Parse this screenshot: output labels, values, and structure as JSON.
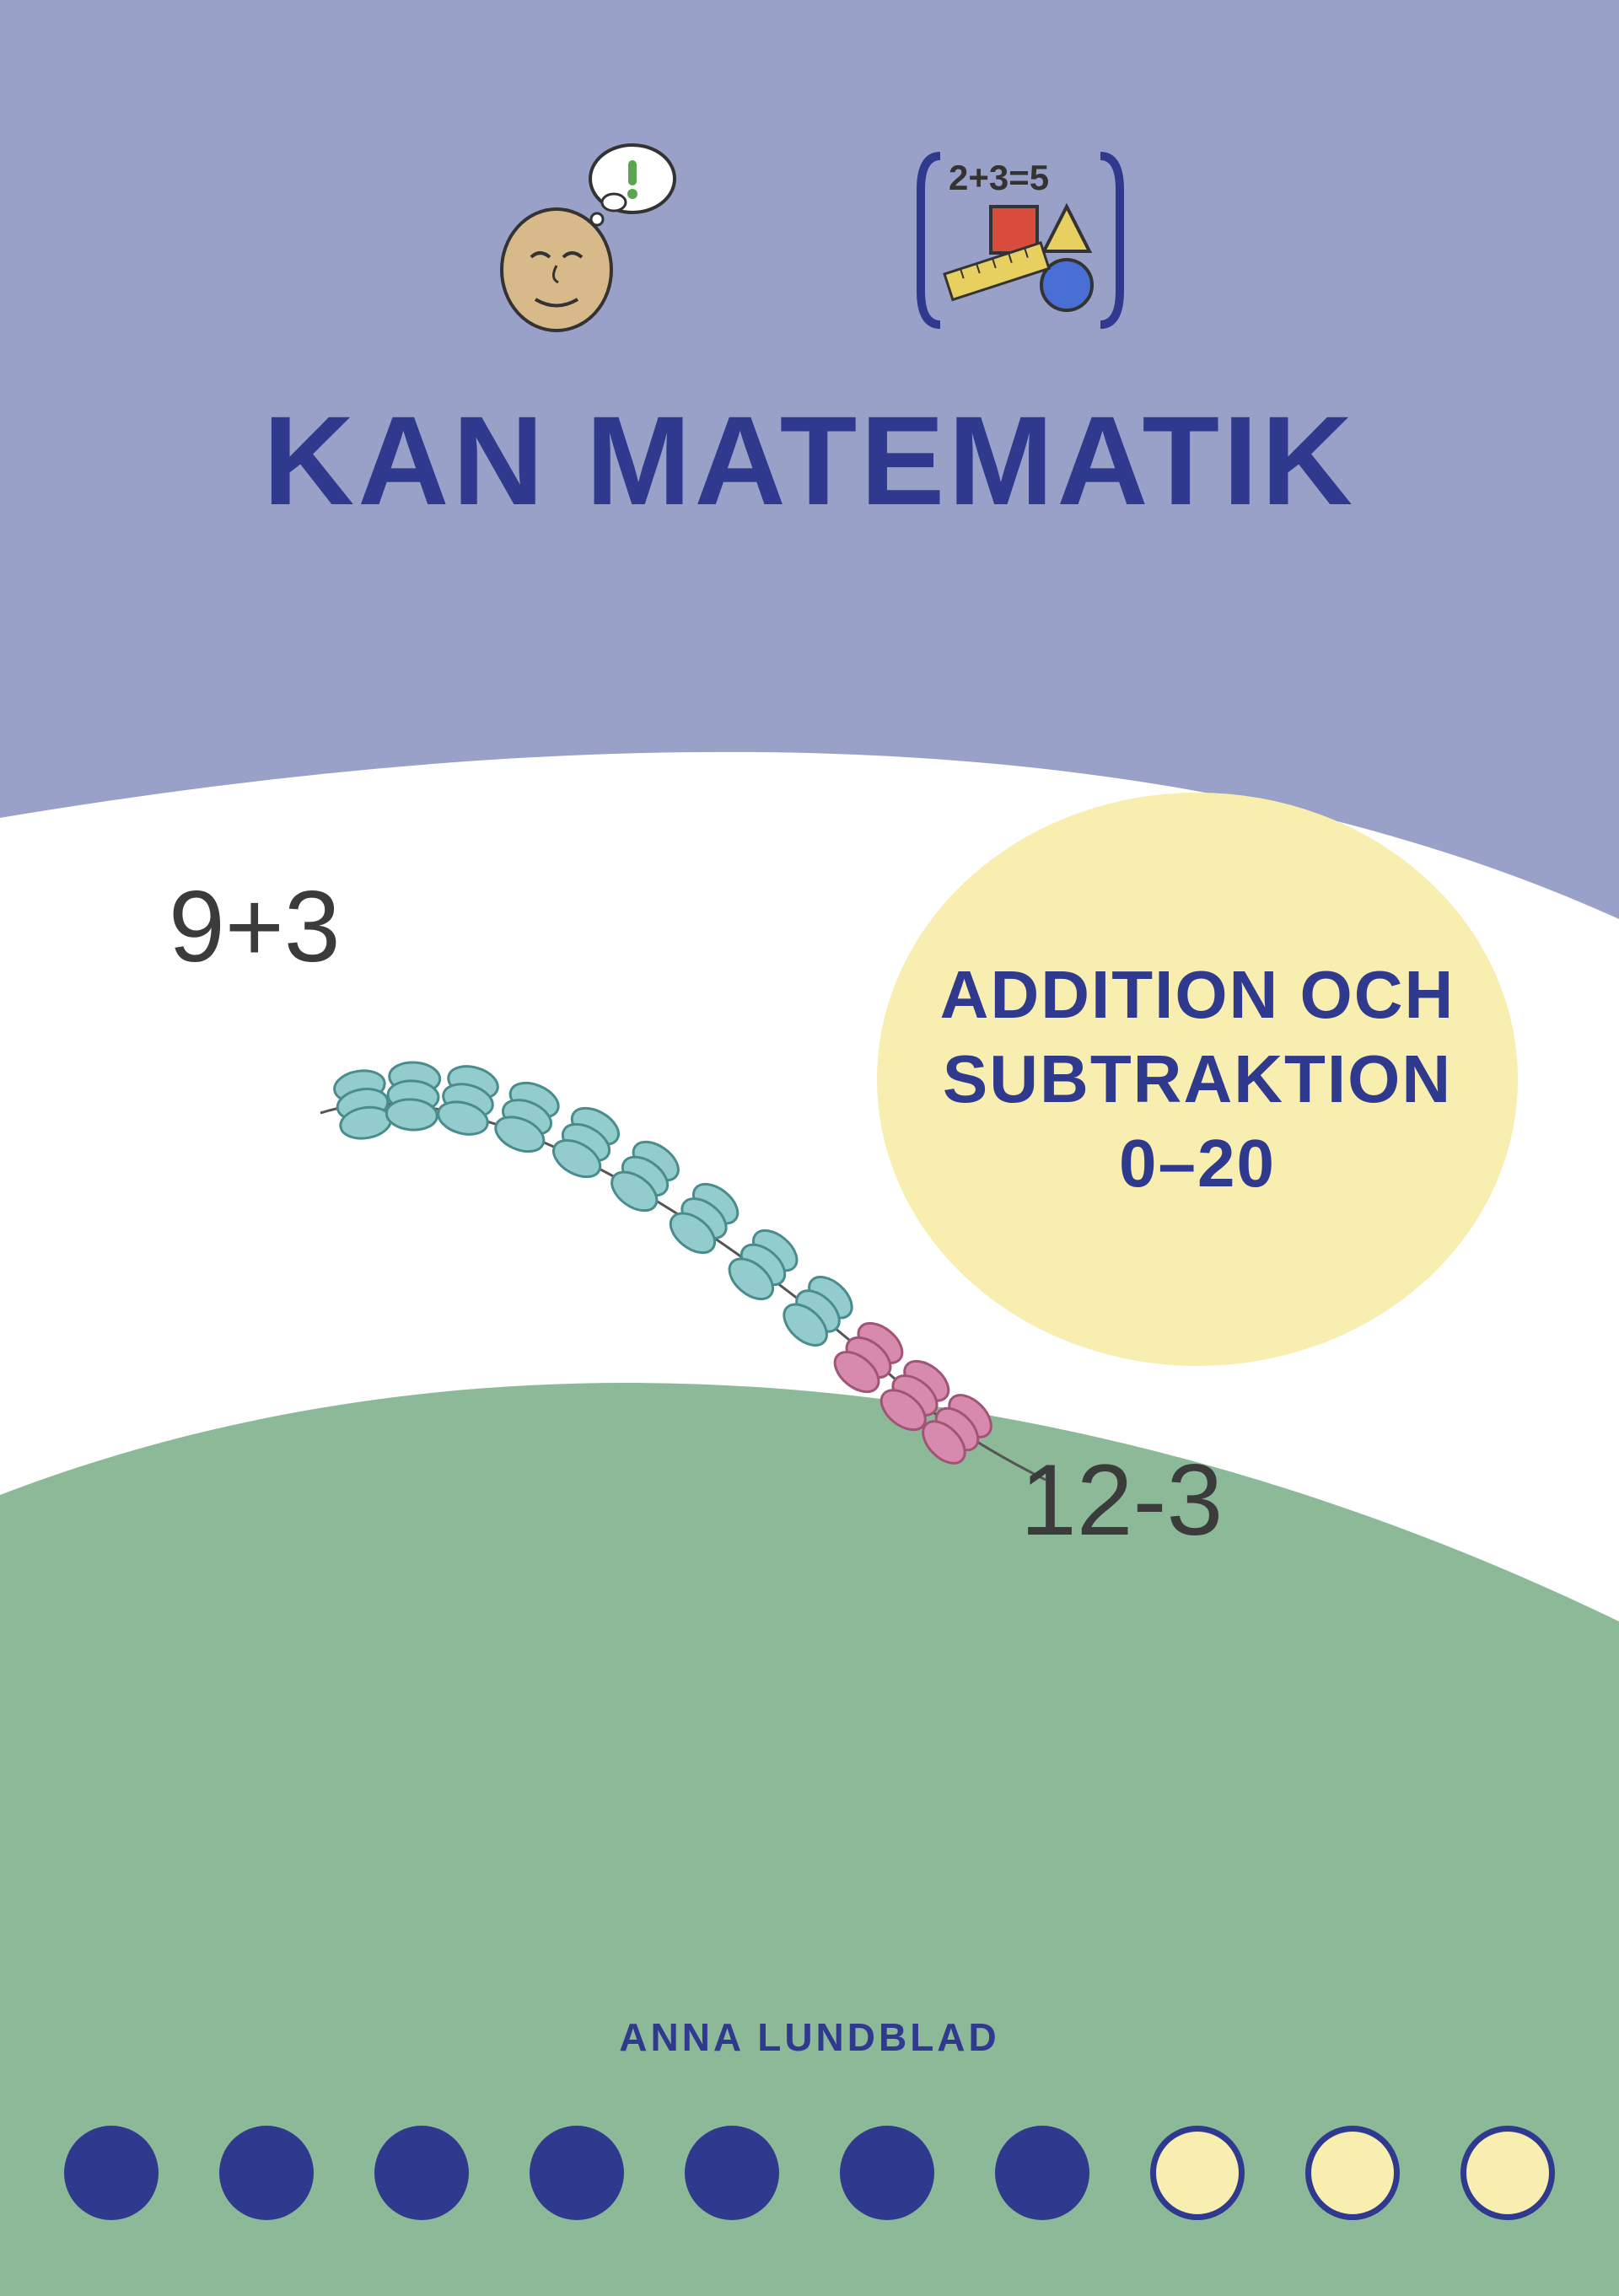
{
  "colors": {
    "top_band": "#99a1c8",
    "bottom_band": "#8cb997",
    "title_text": "#2f3a8f",
    "badge_bg": "#f8eeb0",
    "badge_text": "#2f3a8f",
    "eq_text": "#3b3b3b",
    "author_text": "#2f3a8f",
    "dot_filled": "#2f3a8f",
    "dot_empty_fill": "#f8eeb0",
    "dot_empty_border": "#2f3a8f",
    "bead_blue": "#93cccc",
    "bead_blue_stroke": "#4a8c8c",
    "bead_pink": "#d88aae",
    "bead_pink_stroke": "#a05577",
    "icon_face": "#d8b98a",
    "icon_math_panel": "#ffffff",
    "icon_red": "#d94b3a",
    "icon_yellow": "#e8d060",
    "icon_blue": "#4a6fd4",
    "icon_ruler": "#e8d060"
  },
  "title": "KAN MATEMATIK",
  "badge": {
    "line1": "ADDITION OCH",
    "line2": "SUBTRAKTION",
    "line3": "0–20"
  },
  "equation1": "9+3",
  "equation2": "12-3",
  "author": "ANNA LUNDBLAD",
  "dots": {
    "total": 10,
    "filled": 7
  },
  "icon_math_text": "2+3=5",
  "beads": {
    "blue_count": 9,
    "pink_count": 3
  }
}
